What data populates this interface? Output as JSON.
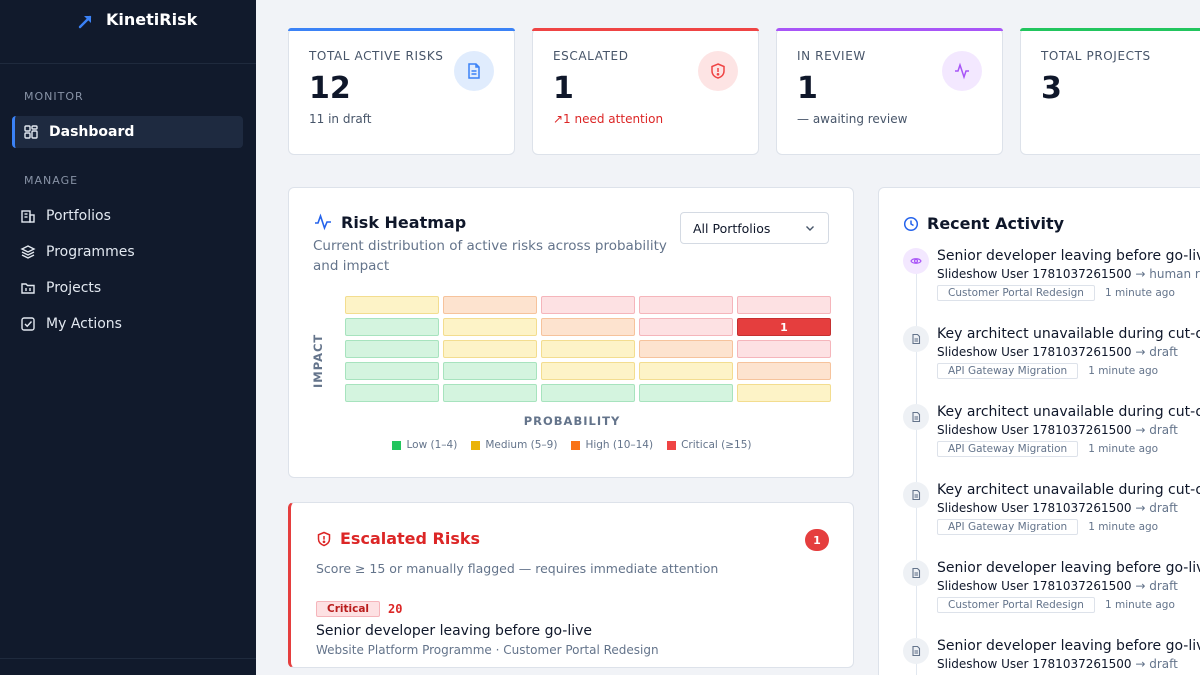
{
  "app": {
    "name": "KinetiRisk"
  },
  "sidebar": {
    "sections": [
      {
        "label": "MONITOR"
      },
      {
        "label": "MANAGE"
      }
    ],
    "items": [
      {
        "label": "Dashboard",
        "icon": "dashboard-icon",
        "active": true
      },
      {
        "label": "Portfolios",
        "icon": "building-icon"
      },
      {
        "label": "Programmes",
        "icon": "layers-icon"
      },
      {
        "label": "Projects",
        "icon": "folder-icon"
      },
      {
        "label": "My Actions",
        "icon": "checkbox-icon"
      }
    ]
  },
  "stats": [
    {
      "label": "TOTAL ACTIVE RISKS",
      "value": "12",
      "sub": "11 in draft",
      "icon": "document-icon",
      "accent": "#3b82f6"
    },
    {
      "label": "ESCALATED",
      "value": "1",
      "sub": "↗1 need attention",
      "icon": "shield-alert-icon",
      "accent": "#ef4444"
    },
    {
      "label": "IN REVIEW",
      "value": "1",
      "sub": "— awaiting review",
      "icon": "activity-icon",
      "accent": "#a855f7"
    },
    {
      "label": "TOTAL PROJECTS",
      "value": "3",
      "sub": "",
      "icon": "check-circle-icon",
      "accent": "#22c55e"
    }
  ],
  "heatmap": {
    "title": "Risk Heatmap",
    "description": "Current distribution of active risks across probability and impact",
    "filter_value": "All Portfolios",
    "x_label": "PROBABILITY",
    "y_label": "IMPACT",
    "rows": [
      [
        "medium",
        "high",
        "critical",
        "critical",
        "critical"
      ],
      [
        "low",
        "medium",
        "high",
        "critical",
        "critical-filled"
      ],
      [
        "low",
        "medium",
        "medium",
        "high",
        "critical"
      ],
      [
        "low",
        "low",
        "medium",
        "medium",
        "high"
      ],
      [
        "low",
        "low",
        "low",
        "low",
        "medium"
      ]
    ],
    "counts": [
      [
        "",
        "",
        "",
        "",
        ""
      ],
      [
        "",
        "",
        "",
        "",
        "1"
      ],
      [
        "",
        "",
        "",
        "",
        ""
      ],
      [
        "",
        "",
        "",
        "",
        ""
      ],
      [
        "",
        "",
        "",
        "",
        ""
      ]
    ],
    "legend": [
      {
        "label": "Low (1–4)",
        "color": "#22c55e"
      },
      {
        "label": "Medium (5–9)",
        "color": "#eab308"
      },
      {
        "label": "High (10–14)",
        "color": "#f97316"
      },
      {
        "label": "Critical (≥15)",
        "color": "#ef4444"
      }
    ]
  },
  "escalated": {
    "title": "Escalated Risks",
    "count": "1",
    "description": "Score ≥ 15 or manually flagged — requires immediate attention",
    "risks": [
      {
        "badge": "Critical",
        "score": "20",
        "title": "Senior developer leaving before go-live",
        "meta": "Website Platform Programme · Customer Portal Redesign"
      }
    ]
  },
  "activity": {
    "title": "Recent Activity",
    "items": [
      {
        "risk": "Senior developer leaving before go-live",
        "user": "Slideshow User 1781037261500",
        "arrow": "→",
        "status": "human review",
        "project": "Customer Portal Redesign",
        "time": "1 minute ago",
        "icon": "eye-icon"
      },
      {
        "risk": "Key architect unavailable during cut-over",
        "user": "Slideshow User 1781037261500",
        "arrow": "→",
        "status": "draft",
        "project": "API Gateway Migration",
        "time": "1 minute ago",
        "icon": "document-icon"
      },
      {
        "risk": "Key architect unavailable during cut-over",
        "user": "Slideshow User 1781037261500",
        "arrow": "→",
        "status": "draft",
        "project": "API Gateway Migration",
        "time": "1 minute ago",
        "icon": "document-icon"
      },
      {
        "risk": "Key architect unavailable during cut-over",
        "user": "Slideshow User 1781037261500",
        "arrow": "→",
        "status": "draft",
        "project": "API Gateway Migration",
        "time": "1 minute ago",
        "icon": "document-icon"
      },
      {
        "risk": "Senior developer leaving before go-live",
        "user": "Slideshow User 1781037261500",
        "arrow": "→",
        "status": "draft",
        "project": "Customer Portal Redesign",
        "time": "1 minute ago",
        "icon": "document-icon"
      },
      {
        "risk": "Senior developer leaving before go-live",
        "user": "Slideshow User 1781037261500",
        "arrow": "→",
        "status": "draft",
        "project": "",
        "time": "",
        "icon": "document-icon"
      }
    ]
  }
}
